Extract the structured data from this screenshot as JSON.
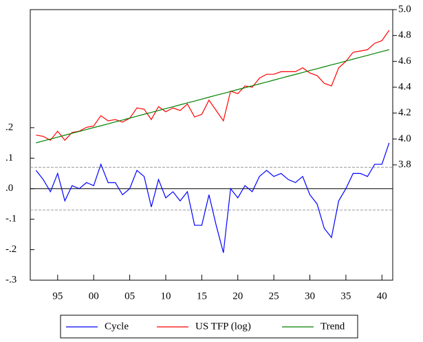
{
  "chart_data": {
    "type": "line",
    "x": [
      1892,
      1893,
      1894,
      1895,
      1896,
      1897,
      1898,
      1899,
      1900,
      1901,
      1902,
      1903,
      1904,
      1905,
      1906,
      1907,
      1908,
      1909,
      1910,
      1911,
      1912,
      1913,
      1914,
      1915,
      1916,
      1917,
      1918,
      1919,
      1920,
      1921,
      1922,
      1923,
      1924,
      1925,
      1926,
      1927,
      1928,
      1929,
      1930,
      1931,
      1932,
      1933,
      1934,
      1935,
      1936,
      1937,
      1938,
      1939,
      1940,
      1941
    ],
    "xlim": [
      1891.2,
      1941.5
    ],
    "xticks": [
      {
        "value": 1895,
        "label": "95"
      },
      {
        "value": 1900,
        "label": "00"
      },
      {
        "value": 1905,
        "label": "05"
      },
      {
        "value": 1910,
        "label": "10"
      },
      {
        "value": 1915,
        "label": "15"
      },
      {
        "value": 1920,
        "label": "20"
      },
      {
        "value": 1925,
        "label": "25"
      },
      {
        "value": 1930,
        "label": "30"
      },
      {
        "value": 1935,
        "label": "35"
      },
      {
        "value": 1940,
        "label": "40"
      }
    ],
    "ylim": [
      -0.3,
      0.587
    ],
    "yticks": [
      {
        "value": -0.3,
        "label": "-.3"
      },
      {
        "value": -0.2,
        "label": "-.2"
      },
      {
        "value": -0.1,
        "label": "-.1"
      },
      {
        "value": 0,
        "label": ".0"
      },
      {
        "value": 0.1,
        "label": ".1"
      },
      {
        "value": 0.2,
        "label": ".2"
      }
    ],
    "y2lim": [
      2.908,
      5.0
    ],
    "y2ticks": [
      3.8,
      {
        "value": 4.0,
        "label": "4.0"
      },
      4.2,
      4.4,
      4.6,
      4.8,
      {
        "value": 5.0,
        "label": "5.0"
      }
    ],
    "hlines": [
      {
        "y": 0,
        "style": "solid"
      },
      {
        "y": 0.07,
        "style": "dashed"
      },
      {
        "y": -0.07,
        "style": "dashed"
      }
    ],
    "legend": "bottom",
    "series": [
      {
        "name": "Cycle",
        "color": "#0000ff",
        "axis": "y",
        "values": [
          0.06,
          0.03,
          -0.01,
          0.05,
          -0.04,
          0.01,
          0.0,
          0.02,
          0.01,
          0.08,
          0.02,
          0.02,
          -0.02,
          0.0,
          0.06,
          0.04,
          -0.06,
          0.03,
          -0.03,
          -0.01,
          -0.04,
          -0.01,
          -0.12,
          -0.12,
          -0.02,
          -0.12,
          -0.21,
          0.0,
          -0.03,
          0.01,
          -0.01,
          0.04,
          0.06,
          0.04,
          0.05,
          0.03,
          0.02,
          0.04,
          -0.02,
          -0.05,
          -0.13,
          -0.16,
          -0.04,
          0.0,
          0.05,
          0.05,
          0.04,
          0.08,
          0.08,
          0.15
        ]
      },
      {
        "name": "US TFP (log)",
        "color": "#ff0000",
        "axis": "y2",
        "values": [
          4.03,
          4.02,
          3.99,
          4.06,
          3.99,
          4.05,
          4.06,
          4.09,
          4.1,
          4.18,
          4.14,
          4.15,
          4.13,
          4.16,
          4.24,
          4.23,
          4.15,
          4.25,
          4.21,
          4.24,
          4.22,
          4.27,
          4.17,
          4.19,
          4.3,
          4.22,
          4.14,
          4.37,
          4.35,
          4.41,
          4.4,
          4.47,
          4.5,
          4.5,
          4.52,
          4.52,
          4.52,
          4.55,
          4.51,
          4.49,
          4.43,
          4.41,
          4.55,
          4.6,
          4.67,
          4.68,
          4.69,
          4.74,
          4.76,
          4.84
        ]
      },
      {
        "name": "Trend",
        "color": "#008000",
        "axis": "y2",
        "values": [
          3.97,
          3.985,
          3.999,
          4.014,
          4.029,
          4.044,
          4.058,
          4.073,
          4.088,
          4.102,
          4.117,
          4.132,
          4.146,
          4.161,
          4.176,
          4.191,
          4.205,
          4.22,
          4.235,
          4.249,
          4.264,
          4.279,
          4.293,
          4.308,
          4.323,
          4.338,
          4.352,
          4.367,
          4.382,
          4.396,
          4.411,
          4.426,
          4.44,
          4.455,
          4.47,
          4.485,
          4.499,
          4.514,
          4.529,
          4.543,
          4.558,
          4.573,
          4.587,
          4.602,
          4.617,
          4.632,
          4.646,
          4.661,
          4.676,
          4.69
        ]
      }
    ]
  }
}
